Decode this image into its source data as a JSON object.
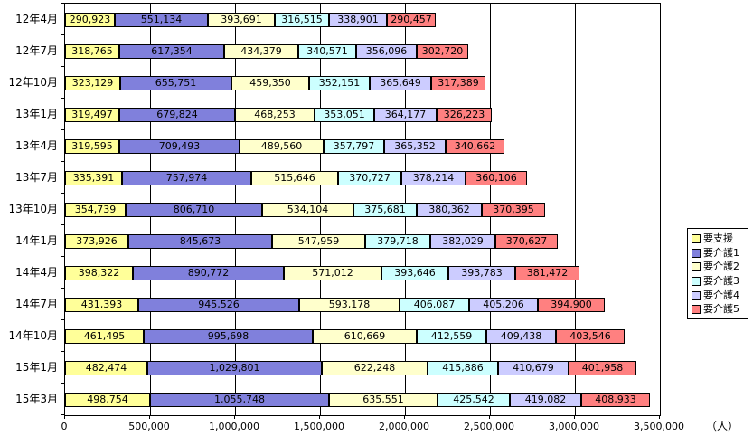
{
  "chart_data": {
    "type": "bar",
    "orientation": "horizontal",
    "stacked": true,
    "title": "",
    "xlabel": "",
    "ylabel": "",
    "x_unit": "（人）",
    "xlim": [
      0,
      3500000
    ],
    "x_ticks": [
      0,
      500000,
      1000000,
      1500000,
      2000000,
      2500000,
      3000000,
      3500000
    ],
    "x_tick_labels": [
      "0",
      "500,000",
      "1,000,000",
      "1,500,000",
      "2,000,000",
      "2,500,000",
      "3,000,000",
      "3,500,000"
    ],
    "grid": true,
    "data_labels": true,
    "legend_position": "right",
    "categories": [
      "12年4月",
      "12年7月",
      "12年10月",
      "13年1月",
      "13年4月",
      "13年7月",
      "13年10月",
      "14年1月",
      "14年4月",
      "14年7月",
      "14年10月",
      "15年1月",
      "15年3月"
    ],
    "series": [
      {
        "name": "要支援",
        "color": "#FFFF99",
        "values": [
          290923,
          318765,
          323129,
          319497,
          319595,
          335391,
          354739,
          373926,
          398322,
          431393,
          461495,
          482474,
          498754
        ]
      },
      {
        "name": "要介護1",
        "color": "#8080DC",
        "values": [
          551134,
          617354,
          655751,
          679824,
          709493,
          757974,
          806710,
          845673,
          890772,
          945526,
          995698,
          1029801,
          1055748
        ]
      },
      {
        "name": "要介護2",
        "color": "#FFFFCC",
        "values": [
          393691,
          434379,
          459350,
          468253,
          489560,
          515646,
          534104,
          547959,
          571012,
          593178,
          610669,
          622248,
          635551
        ]
      },
      {
        "name": "要介護3",
        "color": "#CCFFFF",
        "values": [
          316515,
          340571,
          352151,
          353051,
          357797,
          370727,
          375681,
          379718,
          393646,
          406087,
          412559,
          415886,
          425542
        ]
      },
      {
        "name": "要介護4",
        "color": "#CCCCFF",
        "values": [
          338901,
          356096,
          365649,
          364177,
          365352,
          378214,
          380362,
          382029,
          393783,
          405206,
          409438,
          410679,
          419082
        ]
      },
      {
        "name": "要介護5",
        "color": "#FF8080",
        "values": [
          290457,
          302720,
          317389,
          326223,
          340662,
          360106,
          370395,
          370627,
          381472,
          394900,
          403546,
          401958,
          408933
        ]
      }
    ]
  }
}
